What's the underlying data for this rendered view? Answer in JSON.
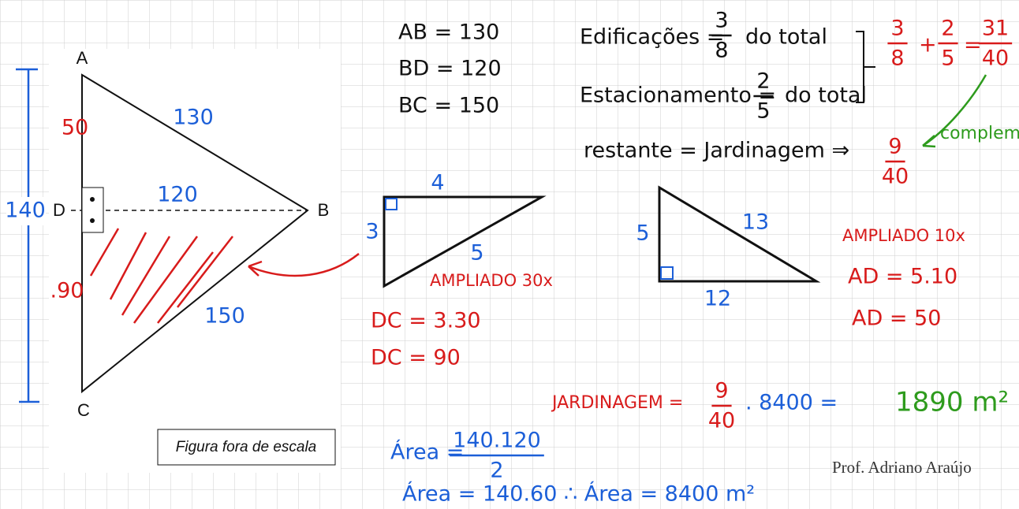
{
  "figure": {
    "vertex_a": "A",
    "vertex_b": "B",
    "vertex_c": "C",
    "vertex_d": "D",
    "side_ab": "130",
    "segment_bd": "120",
    "side_bc": "150",
    "segment_ad": "50",
    "segment_dc": ".90",
    "height_ac": "140",
    "caption": "Figura fora de escala"
  },
  "given": [
    "AB = 130",
    "BD = 120",
    "BC = 150"
  ],
  "fractions": {
    "buildings_label": "Edificações =",
    "buildings": {
      "num": "3",
      "den": "8"
    },
    "buildings_suffix": "do total",
    "parking_label": "Estacionamento =",
    "parking": {
      "num": "2",
      "den": "5"
    },
    "parking_suffix": "do total",
    "sum_a": {
      "num": "3",
      "den": "8"
    },
    "plus": "+",
    "sum_b": {
      "num": "2",
      "den": "5"
    },
    "equals": "=",
    "sum_result": {
      "num": "31",
      "den": "40"
    },
    "remainder_label": "restante = Jardinagem ⇒",
    "remainder": {
      "num": "9",
      "den": "40"
    },
    "complement": "complemento"
  },
  "triangle_3_4_5": {
    "top": "4",
    "left": "3",
    "hyp": "5",
    "scale": "AMPLIADO 30x",
    "step1": "DC = 3.30",
    "step2": "DC = 90"
  },
  "triangle_5_12_13": {
    "left": "5",
    "hyp": "13",
    "bottom": "12",
    "scale": "AMPLIADO 10x",
    "step1": "AD = 5.10",
    "step2": "AD = 50"
  },
  "garden": {
    "label": "JARDINAGEM =",
    "fraction": {
      "num": "9",
      "den": "40"
    },
    "times": ". 8400 =",
    "result": "1890 m²"
  },
  "area": {
    "line1_label": "Área =",
    "line1": {
      "num": "140.120",
      "den": "2"
    },
    "line2": "Área = 140.60 ∴ Área = 8400 m²"
  },
  "signature": "Prof. Adriano Araújo"
}
